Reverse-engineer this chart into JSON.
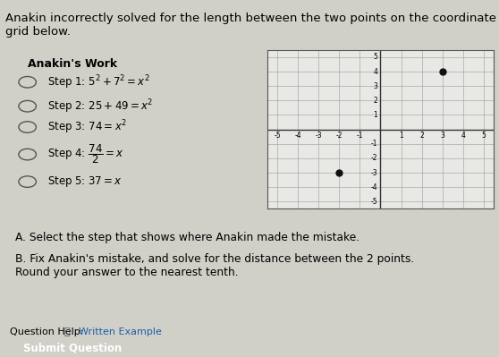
{
  "title": "Anakin incorrectly solved for the length between the two points on the coordinate grid below.",
  "title_fontsize": 9.5,
  "bg_color": "#d0cfc8",
  "box_bg": "#e8e8e4",
  "anakin_title": "Anakin's Work",
  "steps": [
    "Step 1: $5^2 + 7^2 = x^2$",
    "Step 2: $25 + 49 = x^2$",
    "Step 3: $74 = x^2$",
    "Step 4: $\\dfrac{74}{2} = x$",
    "Step 5: $37 = x$"
  ],
  "point1": [
    3,
    4
  ],
  "point2": [
    -2,
    -3
  ],
  "grid_range": [
    -5,
    5
  ],
  "grid_color": "#aaaaaa",
  "axis_color": "#333333",
  "point_color": "#111111",
  "section_a": "A. Select the step that shows where Anakin made the mistake.",
  "section_b": "B. Fix Anakin's mistake, and solve for the distance between the 2 points.\nRound your answer to the nearest tenth.",
  "answer_box_color": "#ffffff",
  "question_help_text": "Question Help:",
  "written_example_text": "Written Example",
  "submit_text": "Submit Question",
  "submit_btn_color": "#3a8fc0",
  "submit_text_color": "#ffffff"
}
